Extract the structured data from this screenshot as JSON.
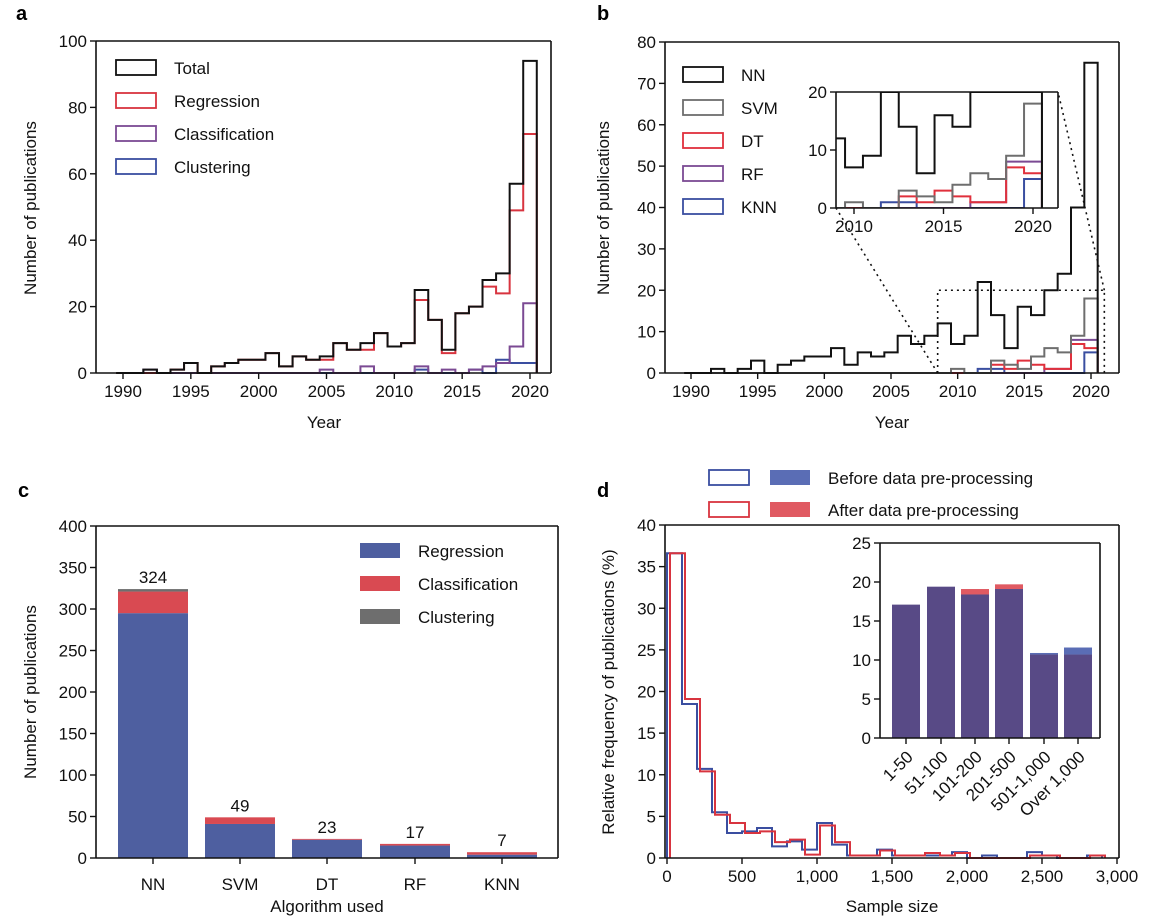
{
  "colors": {
    "total": "#111111",
    "regression_line": "#d8343f",
    "classification_line": "#7b4a93",
    "clustering_line": "#3a4ea0",
    "nn": "#111111",
    "svm": "#6e6e6e",
    "dt": "#e0303c",
    "rf": "#7b4a93",
    "knn": "#3a4ea0",
    "bar_regression": "#4e5fa0",
    "bar_classification": "#d94a52",
    "bar_clustering": "#6e6e6e",
    "before": "#3a4ea0",
    "after": "#d8343f",
    "before_fill": "#5a6db5",
    "after_fill": "#e05a62",
    "overlap_fill": "#584a86"
  },
  "chart_data": [
    {
      "panel": "a",
      "type": "line",
      "style": "step-histogram",
      "panel_label": "a",
      "xlabel": "Year",
      "ylabel": "Number of publications",
      "xlim": [
        1988,
        2022
      ],
      "ylim": [
        0,
        100
      ],
      "xticks": [
        1990,
        1995,
        2000,
        2005,
        2010,
        2015,
        2020
      ],
      "yticks": [
        0,
        20,
        40,
        60,
        80,
        100
      ],
      "legend_position": "top-left",
      "x": [
        1990,
        1991,
        1992,
        1993,
        1994,
        1995,
        1996,
        1997,
        1998,
        1999,
        2000,
        2001,
        2002,
        2003,
        2004,
        2005,
        2006,
        2007,
        2008,
        2009,
        2010,
        2011,
        2012,
        2013,
        2014,
        2015,
        2016,
        2017,
        2018,
        2019,
        2020
      ],
      "series": [
        {
          "name": "Total",
          "color_key": "total",
          "values": [
            0,
            0,
            1,
            0,
            1,
            3,
            0,
            2,
            3,
            4,
            4,
            6,
            2,
            5,
            4,
            5,
            9,
            7,
            9,
            12,
            8,
            9,
            25,
            16,
            7,
            18,
            20,
            28,
            30,
            57,
            94
          ]
        },
        {
          "name": "Regression",
          "color_key": "regression_line",
          "values": [
            0,
            0,
            0,
            0,
            1,
            3,
            0,
            2,
            3,
            4,
            4,
            6,
            2,
            5,
            4,
            4,
            9,
            7,
            7,
            12,
            8,
            9,
            22,
            16,
            6,
            18,
            20,
            26,
            24,
            49,
            72
          ]
        },
        {
          "name": "Classification",
          "color_key": "classification_line",
          "values": [
            0,
            0,
            1,
            0,
            0,
            0,
            0,
            0,
            0,
            0,
            0,
            0,
            0,
            0,
            0,
            1,
            0,
            0,
            2,
            0,
            0,
            0,
            2,
            0,
            1,
            0,
            1,
            2,
            3,
            8,
            21
          ]
        },
        {
          "name": "Clustering",
          "color_key": "clustering_line",
          "values": [
            0,
            0,
            0,
            0,
            0,
            0,
            0,
            0,
            0,
            0,
            0,
            0,
            0,
            0,
            0,
            0,
            0,
            0,
            0,
            0,
            0,
            0,
            1,
            0,
            0,
            0,
            1,
            0,
            4,
            3,
            3
          ]
        }
      ]
    },
    {
      "panel": "b",
      "type": "line",
      "style": "step-histogram",
      "panel_label": "b",
      "xlabel": "Year",
      "ylabel": "Number of publications",
      "xlim": [
        1988,
        2022
      ],
      "ylim": [
        0,
        80
      ],
      "xticks": [
        1990,
        1995,
        2000,
        2005,
        2010,
        2015,
        2020
      ],
      "yticks": [
        0,
        10,
        20,
        30,
        40,
        50,
        60,
        70,
        80
      ],
      "legend_position": "top-left",
      "x": [
        1990,
        1991,
        1992,
        1993,
        1994,
        1995,
        1996,
        1997,
        1998,
        1999,
        2000,
        2001,
        2002,
        2003,
        2004,
        2005,
        2006,
        2007,
        2008,
        2009,
        2010,
        2011,
        2012,
        2013,
        2014,
        2015,
        2016,
        2017,
        2018,
        2019,
        2020
      ],
      "series": [
        {
          "name": "NN",
          "color_key": "nn",
          "values": [
            0,
            0,
            1,
            0,
            1,
            3,
            0,
            2,
            3,
            4,
            4,
            6,
            2,
            5,
            4,
            5,
            9,
            7,
            9,
            12,
            7,
            9,
            22,
            14,
            6,
            16,
            14,
            20,
            24,
            40,
            75
          ]
        },
        {
          "name": "SVM",
          "color_key": "svm",
          "values": [
            0,
            0,
            0,
            0,
            0,
            0,
            0,
            0,
            0,
            0,
            0,
            0,
            0,
            0,
            0,
            0,
            0,
            0,
            0,
            0,
            1,
            0,
            0,
            3,
            2,
            1,
            4,
            6,
            5,
            9,
            18
          ]
        },
        {
          "name": "DT",
          "color_key": "dt",
          "values": [
            0,
            0,
            0,
            0,
            0,
            0,
            0,
            0,
            0,
            0,
            0,
            0,
            0,
            0,
            0,
            0,
            0,
            0,
            0,
            0,
            0,
            0,
            0,
            2,
            1,
            3,
            2,
            1,
            1,
            7,
            6
          ]
        },
        {
          "name": "RF",
          "color_key": "rf",
          "values": [
            0,
            0,
            0,
            0,
            0,
            0,
            0,
            0,
            0,
            0,
            0,
            0,
            0,
            0,
            0,
            0,
            0,
            0,
            0,
            0,
            0,
            0,
            0,
            0,
            0,
            0,
            0,
            1,
            1,
            8,
            8
          ]
        },
        {
          "name": "KNN",
          "color_key": "knn",
          "values": [
            0,
            0,
            0,
            0,
            0,
            0,
            0,
            0,
            0,
            0,
            0,
            0,
            0,
            0,
            0,
            0,
            0,
            0,
            0,
            0,
            0,
            0,
            1,
            1,
            0,
            0,
            0,
            0,
            0,
            0,
            5
          ]
        }
      ],
      "inset": {
        "xlim": [
          2008.5,
          2021.5
        ],
        "ylim": [
          0,
          20
        ],
        "xticks": [
          2010,
          2015,
          2020
        ],
        "yticks": [
          0,
          10,
          20
        ],
        "zoom_region": {
          "x": [
            2008.5,
            2021
          ],
          "y": [
            0,
            20
          ]
        }
      }
    },
    {
      "panel": "c",
      "type": "bar",
      "style": "stacked",
      "panel_label": "c",
      "xlabel": "Algorithm used",
      "ylabel": "Number of publications",
      "ylim": [
        0,
        400
      ],
      "yticks": [
        0,
        50,
        100,
        150,
        200,
        250,
        300,
        350,
        400
      ],
      "legend_position": "top-right",
      "categories": [
        "NN",
        "SVM",
        "DT",
        "RF",
        "KNN"
      ],
      "totals": [
        324,
        49,
        23,
        17,
        7
      ],
      "series": [
        {
          "name": "Regression",
          "color_key": "bar_regression",
          "values": [
            295,
            41,
            22,
            15,
            4
          ]
        },
        {
          "name": "Classification",
          "color_key": "bar_classification",
          "values": [
            26,
            8,
            1,
            2,
            3
          ]
        },
        {
          "name": "Clustering",
          "color_key": "bar_clustering",
          "values": [
            3,
            0,
            0,
            0,
            0
          ]
        }
      ]
    },
    {
      "panel": "d",
      "type": "line",
      "style": "step-histogram",
      "panel_label": "d",
      "xlabel": "Sample size",
      "ylabel": "Relative frequency of publications (%)",
      "xlim": [
        0,
        3000
      ],
      "ylim": [
        0,
        40
      ],
      "xticks": [
        "0",
        "500",
        "1,000",
        "1,500",
        "2,000",
        "2,500",
        "3,000"
      ],
      "xtick_values": [
        0,
        500,
        1000,
        1500,
        2000,
        2500,
        3000
      ],
      "yticks": [
        0,
        5,
        10,
        15,
        20,
        25,
        30,
        35,
        40
      ],
      "legend_position": "top (above plot)",
      "bin_width": 100,
      "bin_starts": [
        0,
        100,
        200,
        300,
        400,
        500,
        600,
        700,
        800,
        900,
        1000,
        1100,
        1200,
        1300,
        1400,
        1500,
        1600,
        1700,
        1800,
        1900,
        2000,
        2100,
        2200,
        2300,
        2400,
        2500,
        2600,
        2700,
        2800
      ],
      "series": [
        {
          "name": "Before data pre-processing",
          "color_key": "before",
          "values": [
            36.6,
            18.5,
            10.7,
            5.5,
            3.0,
            3.2,
            3.6,
            1.4,
            2.0,
            1.0,
            4.2,
            1.6,
            0.3,
            0.3,
            1.0,
            0.3,
            0.3,
            0.3,
            0.3,
            0.7,
            0,
            0.3,
            0,
            0,
            0.7,
            0.3,
            0,
            0,
            0.3
          ]
        },
        {
          "name": "After data pre-processing",
          "color_key": "after",
          "values": [
            36.6,
            19.1,
            10.4,
            5.2,
            4.2,
            3.0,
            3.2,
            1.9,
            2.2,
            0.4,
            3.9,
            1.9,
            0.3,
            0.3,
            0.9,
            0.3,
            0.3,
            0.6,
            0.3,
            0.6,
            0,
            0,
            0,
            0,
            0.3,
            0.3,
            0,
            0,
            0.3
          ]
        }
      ],
      "inset": {
        "type": "bar",
        "style": "overlaid",
        "ylim": [
          0,
          25
        ],
        "yticks": [
          0,
          5,
          10,
          15,
          20,
          25
        ],
        "categories": [
          "1-50",
          "51-100",
          "101-200",
          "201-500",
          "501-1,000",
          "Over 1,000"
        ],
        "series": [
          {
            "name": "Before data pre-processing",
            "color_key": "before_fill",
            "values": [
              17.1,
              19.4,
              18.4,
              19.1,
              10.9,
              11.6
            ]
          },
          {
            "name": "After data pre-processing",
            "color_key": "after_fill",
            "values": [
              17.1,
              19.4,
              19.1,
              19.7,
              10.7,
              10.7
            ]
          }
        ]
      }
    }
  ]
}
